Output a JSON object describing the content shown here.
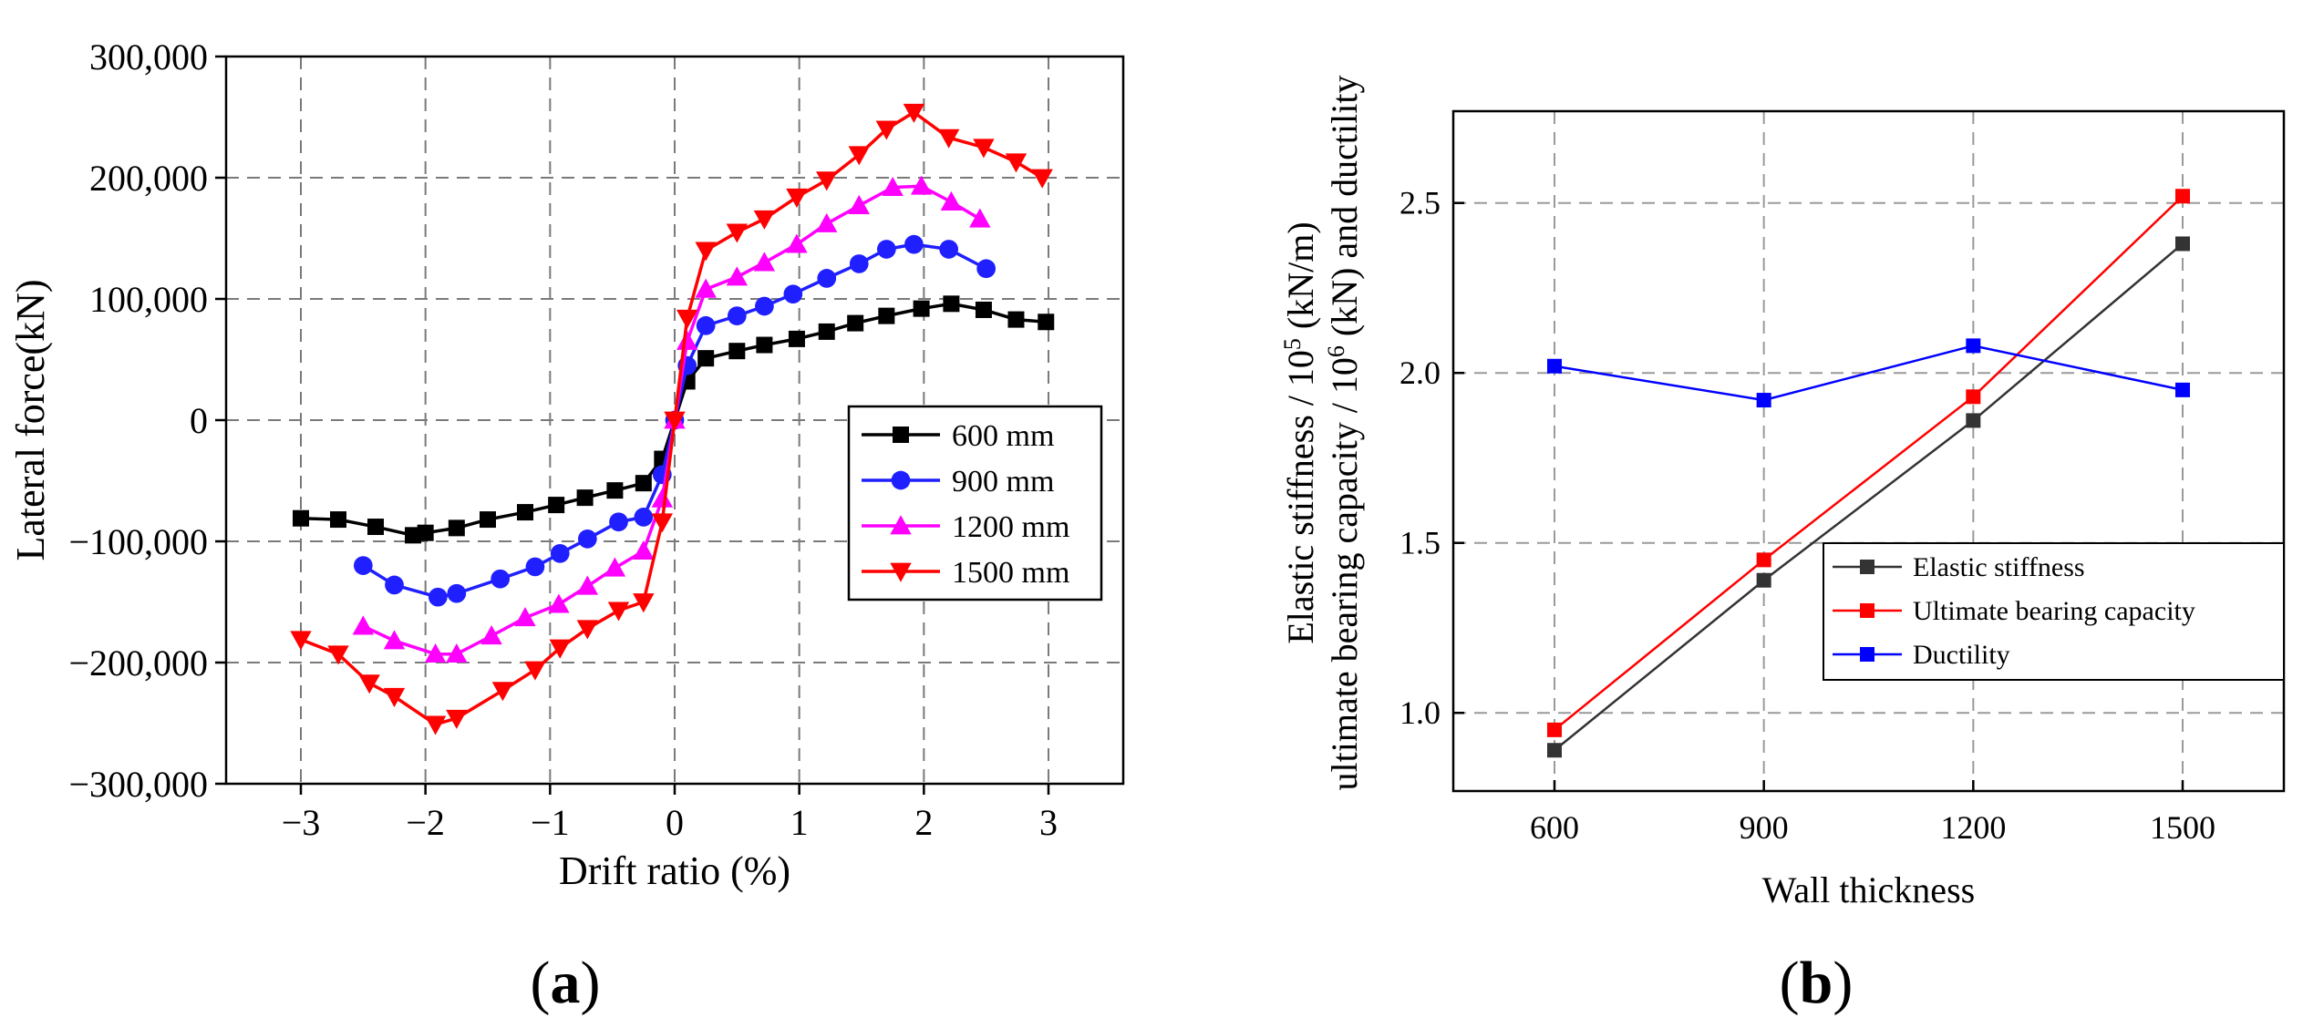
{
  "charts": [
    {
      "type": "line",
      "panel_label": "(a)",
      "panel_label_bold": "a",
      "xlabel": "Drift ratio (%)",
      "ylabel": "Lateral force(kN)",
      "xlim": [
        -3.6,
        3.6
      ],
      "ylim": [
        -300000,
        300000
      ],
      "xticks": [
        -3,
        -2,
        -1,
        0,
        1,
        2,
        3
      ],
      "xtick_labels": [
        "−3",
        "−2",
        "−1",
        "0",
        "1",
        "2",
        "3"
      ],
      "yticks": [
        -300000,
        -200000,
        -100000,
        0,
        100000,
        200000,
        300000
      ],
      "ytick_labels": [
        "−300,000",
        "−200,000",
        "−100,000",
        "0",
        "100,000",
        "200,000",
        "300,000"
      ],
      "grid": true,
      "legend_position": "center-right",
      "series": [
        {
          "name": "600 mm",
          "color": "#000000",
          "marker": "square",
          "x": [
            -3.0,
            -2.7,
            -2.4,
            -2.1,
            -2.0,
            -1.75,
            -1.5,
            -1.2,
            -0.95,
            -0.72,
            -0.48,
            -0.25,
            -0.1,
            0.0,
            0.1,
            0.25,
            0.5,
            0.72,
            0.98,
            1.22,
            1.45,
            1.7,
            1.98,
            2.22,
            2.48,
            2.74,
            2.98
          ],
          "y": [
            -81000,
            -82000,
            -88000,
            -95000,
            -93000,
            -89000,
            -82000,
            -76000,
            -70000,
            -64000,
            -58000,
            -52000,
            -32000,
            0,
            32000,
            51000,
            57000,
            62000,
            67000,
            73000,
            80000,
            86000,
            92000,
            96000,
            91000,
            83000,
            81000
          ]
        },
        {
          "name": "900 mm",
          "color": "#1f1fff",
          "marker": "circle",
          "x": [
            -2.5,
            -2.25,
            -1.9,
            -1.75,
            -1.4,
            -1.12,
            -0.92,
            -0.7,
            -0.45,
            -0.25,
            -0.1,
            0.0,
            0.1,
            0.25,
            0.5,
            0.72,
            0.95,
            1.22,
            1.48,
            1.7,
            1.92,
            2.2,
            2.5
          ],
          "y": [
            -120000,
            -136000,
            -146000,
            -143000,
            -131000,
            -121000,
            -110000,
            -98000,
            -84000,
            -80000,
            -45000,
            0,
            45000,
            78000,
            86000,
            94000,
            104000,
            117000,
            129000,
            141000,
            145000,
            141000,
            125000
          ]
        },
        {
          "name": "1200 mm",
          "color": "#ff00ff",
          "marker": "triangle-up",
          "x": [
            -2.5,
            -2.25,
            -1.92,
            -1.75,
            -1.47,
            -1.2,
            -0.93,
            -0.7,
            -0.48,
            -0.25,
            -0.1,
            0.0,
            0.1,
            0.25,
            0.5,
            0.72,
            0.98,
            1.22,
            1.48,
            1.75,
            1.98,
            2.22,
            2.45
          ],
          "y": [
            -170000,
            -182000,
            -193000,
            -193000,
            -178000,
            -163000,
            -152000,
            -137000,
            -122000,
            -108000,
            -65000,
            0,
            65000,
            108000,
            118000,
            130000,
            145000,
            162000,
            177000,
            192000,
            193000,
            180000,
            166000
          ]
        },
        {
          "name": "1500 mm",
          "color": "#ff0000",
          "marker": "triangle-down",
          "x": [
            -3.0,
            -2.7,
            -2.45,
            -2.25,
            -1.92,
            -1.75,
            -1.38,
            -1.12,
            -0.92,
            -0.7,
            -0.45,
            -0.25,
            -0.1,
            0.0,
            0.1,
            0.25,
            0.5,
            0.72,
            0.98,
            1.22,
            1.48,
            1.7,
            1.92,
            2.2,
            2.48,
            2.74,
            2.95
          ],
          "y": [
            -181000,
            -193000,
            -217000,
            -228000,
            -251000,
            -246000,
            -223000,
            -206000,
            -188000,
            -172000,
            -157000,
            -150000,
            -84000,
            0,
            84000,
            140000,
            155000,
            166000,
            184000,
            198000,
            219000,
            240000,
            254000,
            233000,
            225000,
            213000,
            200000
          ]
        }
      ]
    },
    {
      "type": "line",
      "panel_label": "(b)",
      "panel_label_bold": "b",
      "xlabel": "Wall thickness",
      "ylabel_line1": "Elastic stiffness / 10⁵ (kN/m)",
      "ylabel_line2": "ultimate bearing capacity / 10⁶ (kN) and ductility",
      "ylabel_line1_pre": "Elastic stiffness / 10",
      "ylabel_line1_sup": "5",
      "ylabel_line1_post": " (kN/m)",
      "ylabel_line2_pre": "ultimate bearing capacity / 10",
      "ylabel_line2_sup": "6",
      "ylabel_line2_post": " (kN) and ductility",
      "categories": [
        600,
        900,
        1200,
        1500
      ],
      "xtick_labels": [
        "600",
        "900",
        "1200",
        "1500"
      ],
      "xlim": [
        455,
        1645
      ],
      "ylim": [
        0.77,
        2.77
      ],
      "yticks": [
        1.0,
        1.5,
        2.0,
        2.5
      ],
      "ytick_labels": [
        "1.0",
        "1.5",
        "2.0",
        "2.5"
      ],
      "grid": true,
      "legend_position": "bottom-right",
      "series": [
        {
          "name": "Elastic stiffness",
          "color": "#333333",
          "marker": "square",
          "values": [
            0.89,
            1.39,
            1.86,
            2.38
          ]
        },
        {
          "name": "Ultimate bearing capacity",
          "color": "#ff0000",
          "marker": "square",
          "values": [
            0.95,
            1.45,
            1.93,
            2.52
          ]
        },
        {
          "name": "Ductility",
          "color": "#0000ff",
          "marker": "square",
          "values": [
            2.02,
            1.92,
            2.08,
            1.95
          ]
        }
      ]
    }
  ]
}
